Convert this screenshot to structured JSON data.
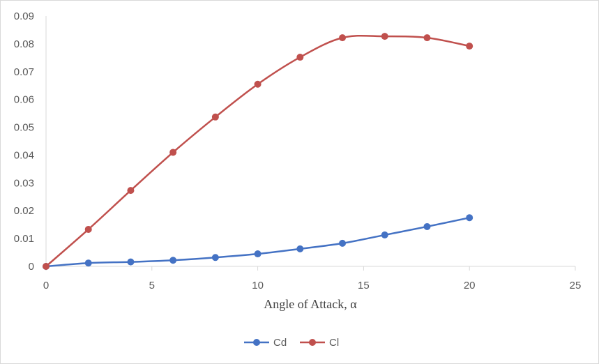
{
  "chart_data": {
    "type": "line",
    "title": "",
    "xlabel": "Angle of Attack, α",
    "ylabel": "",
    "xlim": [
      0,
      25
    ],
    "ylim": [
      0,
      0.09
    ],
    "x_ticks": [
      "0",
      "5",
      "10",
      "15",
      "20",
      "25"
    ],
    "y_ticks": [
      "0",
      "0.01",
      "0.02",
      "0.03",
      "0.04",
      "0.05",
      "0.06",
      "0.07",
      "0.08",
      "0.09"
    ],
    "grid": false,
    "smooth": true,
    "legend_position": "bottom",
    "x": [
      0,
      2,
      4,
      6,
      8,
      10,
      12,
      14,
      16,
      18,
      20
    ],
    "series": [
      {
        "name": "Cd",
        "color": "#4472c4",
        "values": [
          0,
          0.0012,
          0.0016,
          0.0022,
          0.0032,
          0.0045,
          0.0063,
          0.0083,
          0.0113,
          0.0143,
          0.0175
        ]
      },
      {
        "name": "Cl",
        "color": "#c0504d",
        "values": [
          0,
          0.0133,
          0.0273,
          0.041,
          0.0537,
          0.0655,
          0.0752,
          0.0822,
          0.0827,
          0.0822,
          0.0792
        ]
      }
    ]
  }
}
